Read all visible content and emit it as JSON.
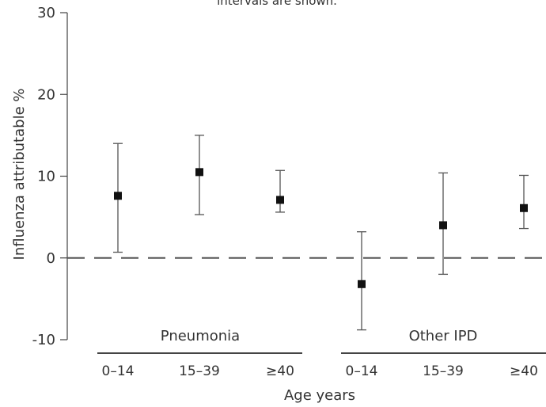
{
  "chart_data": {
    "type": "scatter",
    "title_fragment": "intervals are shown.",
    "ylabel": "Influenza attributable %",
    "xlabel": "Age years",
    "ylim": [
      -10,
      30
    ],
    "yticks": [
      30,
      20,
      10,
      0,
      -10
    ],
    "ytick_labels": [
      "30",
      "20",
      "10",
      "0",
      "-10"
    ],
    "reference_line": 0,
    "groups": [
      {
        "name": "Pneumonia",
        "categories": [
          "0–14",
          "15–39",
          "≥40"
        ],
        "values": [
          7.6,
          10.5,
          7.1
        ],
        "lower": [
          0.7,
          5.3,
          5.6
        ],
        "upper": [
          14.0,
          15.0,
          10.7
        ]
      },
      {
        "name": "Other IPD",
        "categories": [
          "0–14",
          "15–39",
          "≥40"
        ],
        "values": [
          -3.2,
          4.0,
          6.1
        ],
        "lower": [
          -8.8,
          -2.0,
          3.6
        ],
        "upper": [
          3.2,
          10.4,
          10.1
        ]
      }
    ],
    "colors": {
      "marker": "#111111",
      "errorbar": "#555555",
      "axis": "#444444",
      "refline": "#555555"
    }
  }
}
